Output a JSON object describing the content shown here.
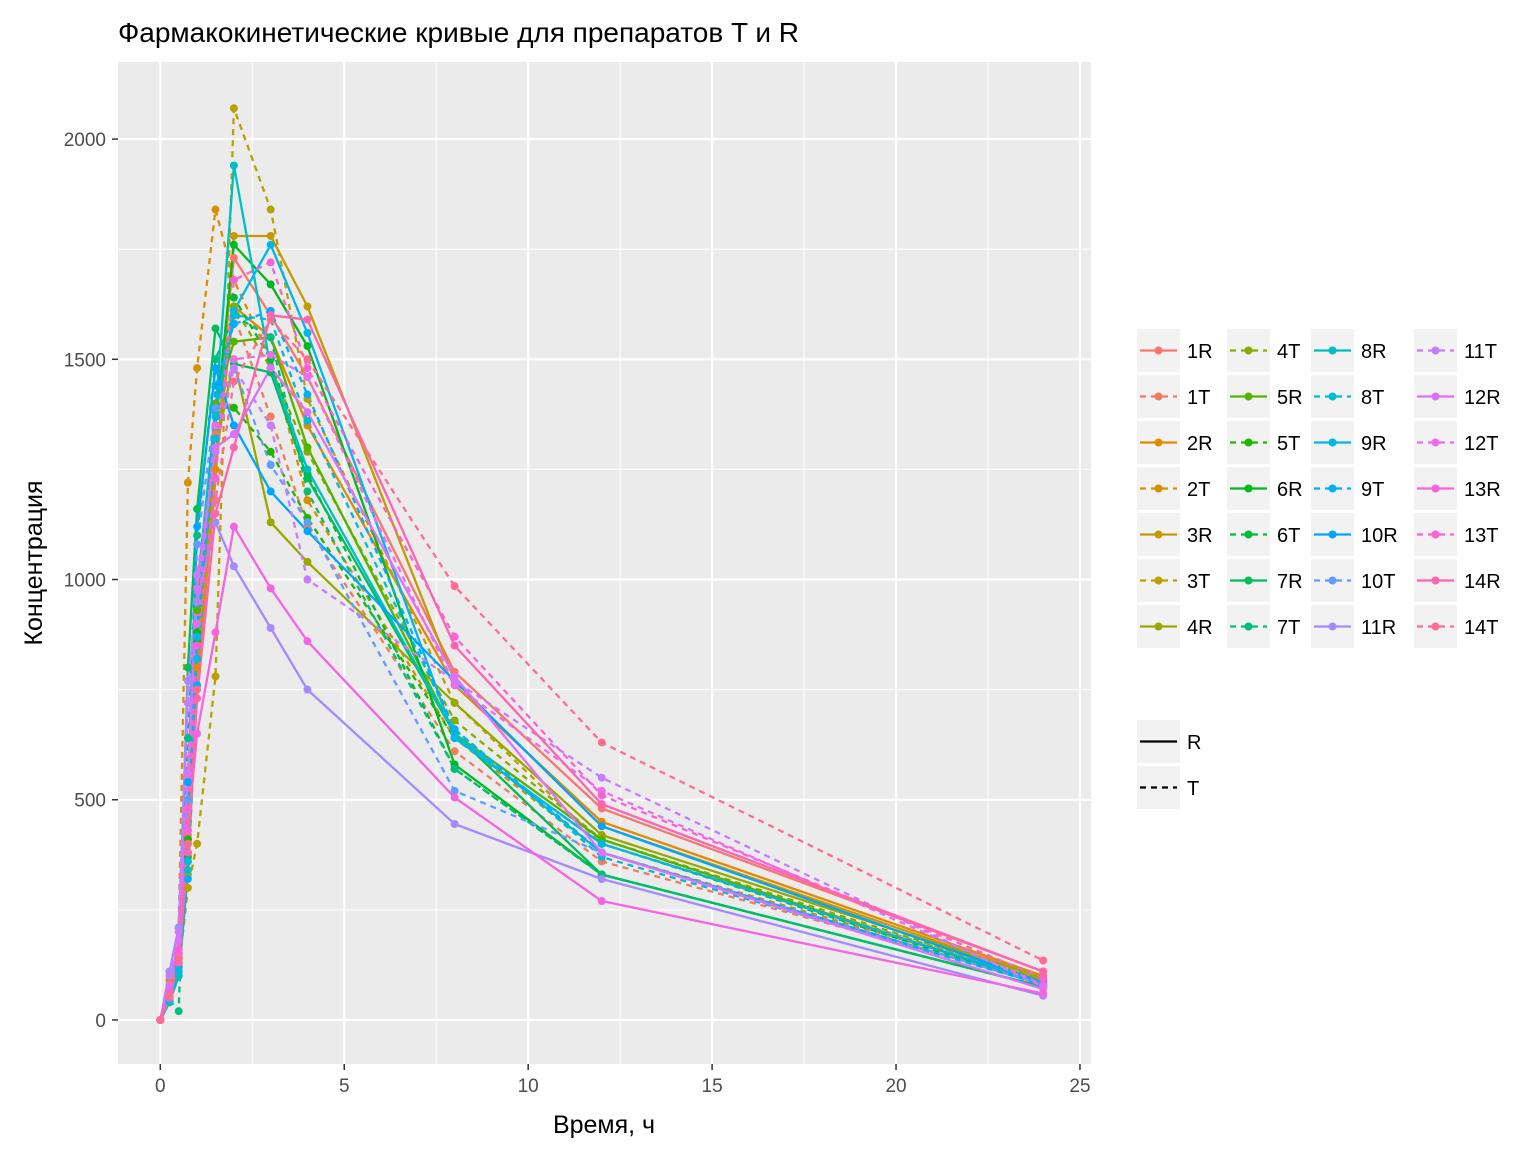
{
  "chart_data": {
    "type": "line",
    "title": "Фармакокинетические кривые для препаратов T и R",
    "xlabel": "Время, ч",
    "ylabel": "Концентрация",
    "xlim": [
      -1.15,
      25.3
    ],
    "ylim": [
      -100,
      2175
    ],
    "x_ticks": [
      0,
      5,
      10,
      15,
      20,
      25
    ],
    "y_ticks": [
      0,
      500,
      1000,
      1500,
      2000
    ],
    "x": [
      0,
      0.25,
      0.5,
      0.75,
      1,
      1.5,
      2,
      3,
      4,
      8,
      12,
      24
    ],
    "grid": true,
    "background": "#ebebeb",
    "legend_position": "right",
    "linetype_legend": [
      {
        "label": "R",
        "dash": "solid"
      },
      {
        "label": "T",
        "dash": "dashed"
      }
    ],
    "series": [
      {
        "name": "1R",
        "color": "#F8766D",
        "dash": "solid",
        "values": [
          0,
          60,
          150,
          420,
          900,
          1350,
          1730,
          1600,
          1460,
          790,
          480,
          110
        ]
      },
      {
        "name": "1T",
        "color": "#F07D5B",
        "dash": "dashed",
        "values": [
          0,
          55,
          140,
          400,
          880,
          1330,
          1600,
          1370,
          1120,
          610,
          360,
          85
        ]
      },
      {
        "name": "2R",
        "color": "#E38900",
        "dash": "solid",
        "values": [
          0,
          50,
          120,
          360,
          800,
          1250,
          1620,
          1550,
          1350,
          760,
          450,
          100
        ]
      },
      {
        "name": "2T",
        "color": "#D89000",
        "dash": "dashed",
        "values": [
          0,
          90,
          210,
          1220,
          1480,
          1840,
          1680,
          1500,
          1180,
          640,
          380,
          90
        ]
      },
      {
        "name": "3R",
        "color": "#C49A00",
        "dash": "solid",
        "values": [
          0,
          40,
          100,
          330,
          760,
          1230,
          1780,
          1780,
          1620,
          770,
          440,
          95
        ]
      },
      {
        "name": "3T",
        "color": "#B8A100",
        "dash": "dashed",
        "values": [
          0,
          45,
          110,
          300,
          400,
          780,
          2070,
          1840,
          1410,
          720,
          400,
          90
        ]
      },
      {
        "name": "4R",
        "color": "#99A800",
        "dash": "solid",
        "values": [
          0,
          50,
          130,
          380,
          860,
          1290,
          1500,
          1130,
          1040,
          720,
          420,
          95
        ]
      },
      {
        "name": "4T",
        "color": "#86AC00",
        "dash": "dashed",
        "values": [
          0,
          60,
          150,
          430,
          950,
          1380,
          1620,
          1480,
          1290,
          680,
          410,
          90
        ]
      },
      {
        "name": "5R",
        "color": "#53B400",
        "dash": "solid",
        "values": [
          0,
          55,
          140,
          410,
          930,
          1400,
          1540,
          1550,
          1300,
          650,
          410,
          80
        ]
      },
      {
        "name": "5T",
        "color": "#1FB500",
        "dash": "dashed",
        "values": [
          0,
          55,
          140,
          410,
          900,
          1390,
          1390,
          1290,
          1140,
          640,
          400,
          80
        ]
      },
      {
        "name": "6R",
        "color": "#00B81F",
        "dash": "solid",
        "values": [
          0,
          45,
          120,
          380,
          880,
          1350,
          1760,
          1670,
          1530,
          580,
          330,
          75
        ]
      },
      {
        "name": "6T",
        "color": "#00BA38",
        "dash": "dashed",
        "values": [
          0,
          45,
          120,
          370,
          860,
          1320,
          1640,
          1500,
          1240,
          570,
          330,
          75
        ]
      },
      {
        "name": "7R",
        "color": "#00BC59",
        "dash": "solid",
        "values": [
          0,
          50,
          130,
          800,
          1160,
          1570,
          1490,
          1470,
          1230,
          650,
          330,
          75
        ]
      },
      {
        "name": "7T",
        "color": "#00BF7D",
        "dash": "dashed",
        "values": [
          0,
          45,
          20,
          640,
          1100,
          1500,
          1600,
          1550,
          1200,
          570,
          330,
          75
        ]
      },
      {
        "name": "8R",
        "color": "#00BFC4",
        "dash": "solid",
        "values": [
          0,
          40,
          100,
          340,
          980,
          1380,
          1940,
          1480,
          1250,
          650,
          380,
          80
        ]
      },
      {
        "name": "8T",
        "color": "#00BCD8",
        "dash": "dashed",
        "values": [
          0,
          45,
          110,
          360,
          820,
          1320,
          1600,
          1590,
          1360,
          660,
          370,
          80
        ]
      },
      {
        "name": "9R",
        "color": "#00B6EB",
        "dash": "solid",
        "values": [
          0,
          50,
          120,
          380,
          870,
          1370,
          1610,
          1760,
          1560,
          640,
          400,
          85
        ]
      },
      {
        "name": "9T",
        "color": "#00AEFA",
        "dash": "dashed",
        "values": [
          0,
          50,
          130,
          320,
          760,
          1440,
          1580,
          1610,
          1420,
          660,
          380,
          80
        ]
      },
      {
        "name": "10R",
        "color": "#00A5FF",
        "dash": "solid",
        "values": [
          0,
          55,
          140,
          540,
          1120,
          1480,
          1350,
          1200,
          1110,
          770,
          440,
          85
        ]
      },
      {
        "name": "10T",
        "color": "#619CFF",
        "dash": "dashed",
        "values": [
          0,
          60,
          150,
          500,
          1080,
          1390,
          1480,
          1260,
          1130,
          520,
          380,
          80
        ]
      },
      {
        "name": "11R",
        "color": "#A58AFF",
        "dash": "solid",
        "values": [
          0,
          110,
          210,
          770,
          950,
          1130,
          1030,
          890,
          750,
          445,
          320,
          55
        ]
      },
      {
        "name": "11T",
        "color": "#C77CFF",
        "dash": "dashed",
        "values": [
          0,
          100,
          200,
          720,
          1010,
          1290,
          1480,
          1350,
          1000,
          770,
          550,
          75
        ]
      },
      {
        "name": "12R",
        "color": "#DF70F8",
        "dash": "solid",
        "values": [
          0,
          80,
          180,
          560,
          980,
          1300,
          1330,
          1480,
          1380,
          780,
          380,
          70
        ]
      },
      {
        "name": "12T",
        "color": "#EA6DEC",
        "dash": "dashed",
        "values": [
          0,
          70,
          160,
          480,
          900,
          1350,
          1500,
          1510,
          1460,
          760,
          520,
          80
        ]
      },
      {
        "name": "13R",
        "color": "#F564E3",
        "dash": "solid",
        "values": [
          0,
          60,
          150,
          430,
          650,
          880,
          1120,
          980,
          860,
          505,
          270,
          60
        ]
      },
      {
        "name": "13T",
        "color": "#FB61D7",
        "dash": "dashed",
        "values": [
          0,
          65,
          160,
          480,
          850,
          1230,
          1680,
          1720,
          1480,
          870,
          510,
          95
        ]
      },
      {
        "name": "14R",
        "color": "#FF64B0",
        "dash": "solid",
        "values": [
          0,
          50,
          130,
          380,
          730,
          1150,
          1300,
          1600,
          1590,
          850,
          490,
          110
        ]
      },
      {
        "name": "14T",
        "color": "#FF6C91",
        "dash": "dashed",
        "values": [
          0,
          55,
          140,
          400,
          750,
          1180,
          1450,
          1590,
          1500,
          985,
          630,
          135
        ]
      }
    ]
  }
}
